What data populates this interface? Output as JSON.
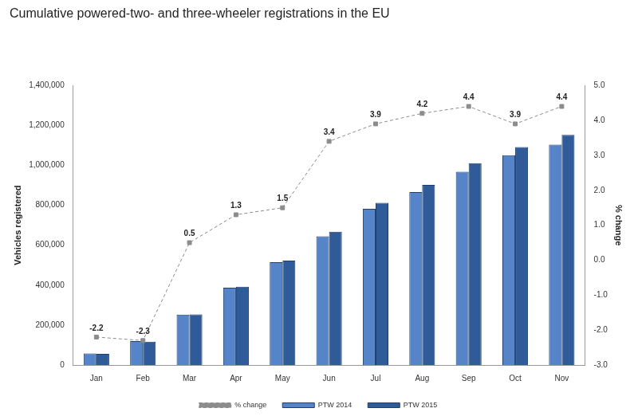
{
  "chart_data": {
    "type": "bar",
    "title": "Cumulative powered-two- and three-wheeler registrations in the EU",
    "y_label": "Vehicles registered",
    "y2_label": "% change",
    "categories": [
      "Jan",
      "Feb",
      "Mar",
      "Apr",
      "May",
      "Jun",
      "Jul",
      "Aug",
      "Sep",
      "Oct",
      "Nov"
    ],
    "series": [
      {
        "name": "PTW 2014",
        "type": "bar",
        "color": "#5585c8",
        "values": [
          58000,
          120000,
          252000,
          387000,
          515000,
          645000,
          782000,
          866000,
          968000,
          1051000,
          1103000
        ]
      },
      {
        "name": "PTW 2015",
        "type": "bar",
        "color": "#2f5b98",
        "values": [
          56000,
          117000,
          253000,
          392000,
          523000,
          667000,
          812000,
          902000,
          1011000,
          1092000,
          1152000
        ]
      },
      {
        "name": "% change",
        "type": "line",
        "color": "#8c8c8c",
        "axis": "y2",
        "marker": "square",
        "line_style": "dashed",
        "data_labels": true,
        "values": [
          -2.2,
          -2.3,
          0.5,
          1.3,
          1.5,
          3.4,
          3.9,
          4.2,
          4.4,
          3.9,
          4.4
        ]
      }
    ],
    "ylim": [
      0,
      1400000
    ],
    "yticks": [
      0,
      {
        "value": 200000,
        "label": "200,000"
      },
      {
        "value": 400000,
        "label": "400,000"
      },
      {
        "value": 600000,
        "label": "600,000"
      },
      {
        "value": 800000,
        "label": "800,000"
      },
      {
        "value": 1000000,
        "label": "1,000,000"
      },
      {
        "value": 1200000,
        "label": "1,200,000"
      },
      {
        "value": 1400000,
        "label": "1,400,000"
      }
    ],
    "y2lim": [
      -3,
      5
    ],
    "y2ticks": [
      {
        "value": -3,
        "label": "-3.0"
      },
      {
        "value": -2,
        "label": "-2.0"
      },
      {
        "value": -1,
        "label": "-1.0"
      },
      {
        "value": 0,
        "label": "0.0"
      },
      {
        "value": 1,
        "label": "1.0"
      },
      {
        "value": 2,
        "label": "2.0"
      },
      {
        "value": 3,
        "label": "3.0"
      },
      {
        "value": 4,
        "label": "4.0"
      },
      {
        "value": 5,
        "label": "5.0"
      }
    ],
    "grid": false,
    "legend": "bottom"
  }
}
